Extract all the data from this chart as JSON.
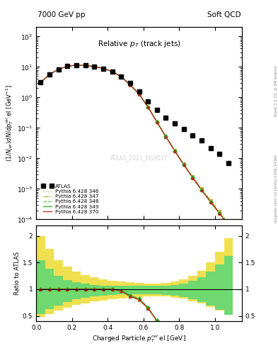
{
  "title_top_left": "7000 GeV pp",
  "title_top_right": "Soft QCD",
  "plot_title": "Relative $p_T$ (track jets)",
  "xlabel": "Charged Particle $p^{rel}_T$ el [GeV]",
  "ylabel": "(1/Njet)dN/dp$^{rel}_T$ el [GeV$^{-1}$]",
  "ylabel_ratio": "Ratio to ATLAS",
  "watermark": "ATLAS_2011_I919017",
  "right_label1": "Rivet 3.1.10, ≥ 3M events",
  "right_label2": "mcplots.cern.ch [arXiv:1306.3436]",
  "xlim": [
    0.0,
    1.15
  ],
  "ylim_main_lo": 0.0001,
  "ylim_main_hi": 200,
  "ylim_ratio_lo": 0.4,
  "ylim_ratio_hi": 2.2,
  "x_data": [
    0.025,
    0.075,
    0.125,
    0.175,
    0.225,
    0.275,
    0.325,
    0.375,
    0.425,
    0.475,
    0.525,
    0.575,
    0.625,
    0.675,
    0.725,
    0.775,
    0.825,
    0.875,
    0.925,
    0.975,
    1.025,
    1.075
  ],
  "atlas_y": [
    3.1,
    5.7,
    8.4,
    10.5,
    11.4,
    11.1,
    10.4,
    8.9,
    7.1,
    4.9,
    3.0,
    1.6,
    0.75,
    0.38,
    0.22,
    0.14,
    0.09,
    0.058,
    0.038,
    0.022,
    0.014,
    0.007
  ],
  "py_base": [
    3.1,
    5.7,
    8.4,
    10.5,
    11.4,
    11.1,
    10.4,
    8.9,
    7.1,
    4.75,
    2.6,
    1.28,
    0.48,
    0.155,
    0.052,
    0.018,
    0.0065,
    0.0025,
    0.001,
    0.00042,
    0.00018,
    7.5e-05
  ],
  "color_346": "#c8a030",
  "color_347": "#b0b020",
  "color_348": "#60c840",
  "color_349": "#20b820",
  "color_370": "#c02020",
  "band_yellow": "#f0e050",
  "band_green": "#70d870",
  "yticks_ratio": [
    0.5,
    1.0,
    1.5,
    2.0
  ],
  "ytick_ratio_labels": [
    "0.5",
    "1",
    "1.5",
    "2"
  ]
}
